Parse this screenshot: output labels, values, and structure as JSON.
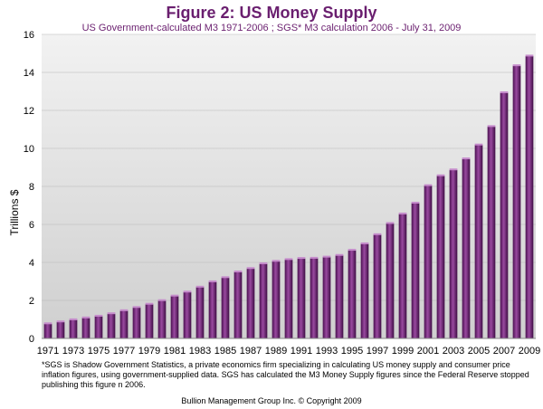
{
  "header": {
    "title": "Figure 2: US Money Supply",
    "subtitle": "US Government-calculated  M3 1971-2006 ; SGS* M3 calculation 2006 - July 31, 2009"
  },
  "footnote": "*SGS is Shadow Government Statistics,  a private economics firm specializing  in calculating  US money supply and consumer price inflation figures, using government-supplied  data. SGS has calculated the M3 Money Supply figures since the Federal Reserve stopped publishing  this figure n 2006.",
  "copyright": "Bullion Management Group Inc. © Copyright 2009",
  "chart_data": {
    "type": "bar",
    "ylabel": "Trillions $",
    "xlabel": "",
    "ylim": [
      0,
      16
    ],
    "yticks": [
      0,
      2,
      4,
      6,
      8,
      10,
      12,
      14,
      16
    ],
    "grid": true,
    "bar_color": "#7b2a7f",
    "categories": [
      "1971",
      "1972",
      "1973",
      "1974",
      "1975",
      "1976",
      "1977",
      "1978",
      "1979",
      "1980",
      "1981",
      "1982",
      "1983",
      "1984",
      "1985",
      "1986",
      "1987",
      "1988",
      "1989",
      "1990",
      "1991",
      "1992",
      "1993",
      "1994",
      "1995",
      "1996",
      "1997",
      "1998",
      "1999",
      "2000",
      "2001",
      "2002",
      "2003",
      "2004",
      "2005",
      "2006",
      "2007",
      "2008",
      "2009"
    ],
    "tick_labels": [
      "1971",
      "1973",
      "1975",
      "1977",
      "1979",
      "1981",
      "1983",
      "1985",
      "1987",
      "1989",
      "1991",
      "1993",
      "1995",
      "1997",
      "1999",
      "2001",
      "2003",
      "2005",
      "2007",
      "2009"
    ],
    "values": [
      0.77,
      0.87,
      0.98,
      1.08,
      1.17,
      1.3,
      1.46,
      1.63,
      1.8,
      1.99,
      2.23,
      2.44,
      2.7,
      2.98,
      3.2,
      3.5,
      3.68,
      3.93,
      4.06,
      4.15,
      4.21,
      4.22,
      4.28,
      4.37,
      4.64,
      4.98,
      5.46,
      6.05,
      6.55,
      7.12,
      8.04,
      8.56,
      8.87,
      9.45,
      10.18,
      11.15,
      12.93,
      14.35,
      14.86
    ]
  }
}
